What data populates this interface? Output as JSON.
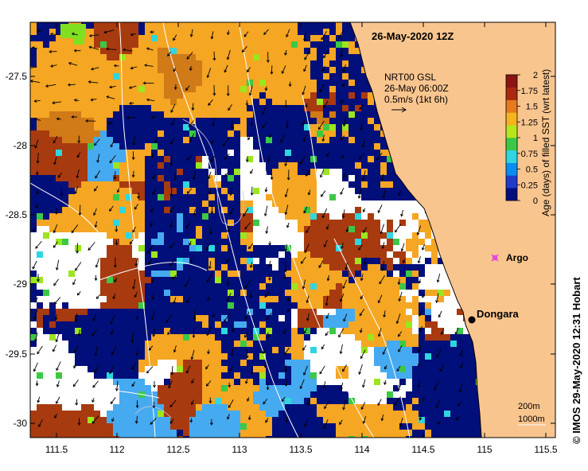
{
  "map": {
    "date_label": "26-May-2020 12Z",
    "current_info": {
      "line1": "NRT00 GSL",
      "line2": "26-May 06:00Z",
      "line3": "0.5m/s (1kt 6h)"
    },
    "colorbar": {
      "title": "Age (days) of filled SST (wrt latest)",
      "ticks": [
        "0",
        "0.25",
        "0.5",
        "0.75",
        "1",
        "1.25",
        "1.5",
        "1.75",
        "2"
      ],
      "colors": [
        "#000f7a",
        "#1e3cc8",
        "#0a8cf0",
        "#2ed6e0",
        "#3cc846",
        "#b4e61e",
        "#f5b41e",
        "#e6781e",
        "#aa280f",
        "#8c1414"
      ]
    },
    "x_axis": {
      "ticks": [
        "111.5",
        "112",
        "112.5",
        "113",
        "113.5",
        "114",
        "114.5",
        "115",
        "115.5"
      ]
    },
    "y_axis": {
      "ticks": [
        "-27.5",
        "-28",
        "-28.5",
        "-29",
        "-29.5",
        "-30"
      ]
    },
    "places": [
      {
        "name": "Dongara"
      },
      {
        "name": "Argo"
      }
    ],
    "contours": [
      "200m",
      "1000m"
    ],
    "copyright": "©  IMOS 29-May-2020 12:31 Hobart",
    "colors": {
      "land": "#f9c58f",
      "ocean_recent": "#000f7a",
      "orange": "#f5a623",
      "dark_orange": "#d07a18",
      "red_brown": "#a83a10",
      "light_blue": "#46aaf0",
      "argo": "#e040e0"
    }
  }
}
